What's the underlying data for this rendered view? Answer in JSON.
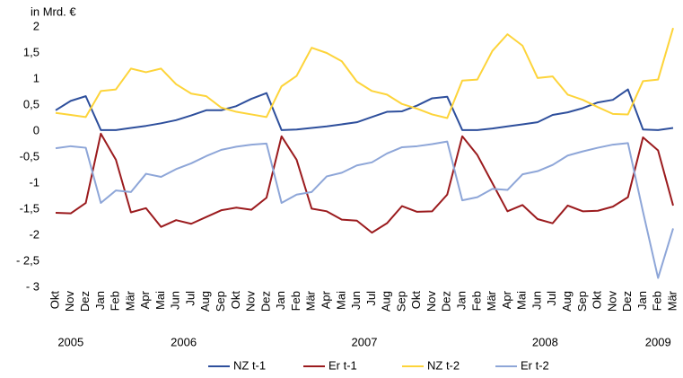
{
  "chart_data": {
    "type": "line",
    "unit_label": "in Mrd. €",
    "categories": [
      "Okt",
      "Nov",
      "Dez",
      "Jan",
      "Feb",
      "Mär",
      "Apr",
      "Mai",
      "Jun",
      "Jul",
      "Aug",
      "Sep",
      "Okt",
      "Nov",
      "Dez",
      "Jan",
      "Feb",
      "Mär",
      "Apr",
      "Mai",
      "Jun",
      "Jul",
      "Aug",
      "Sep",
      "Okt",
      "Nov",
      "Dez",
      "Jan",
      "Feb",
      "Mär",
      "Apr",
      "Mai",
      "Jun",
      "Jul",
      "Aug",
      "Sep",
      "Okt",
      "Nov",
      "Dez",
      "Jan",
      "Feb",
      "Mär"
    ],
    "years": [
      {
        "label": "2005",
        "months": 3
      },
      {
        "label": "2006",
        "months": 12
      },
      {
        "label": "2007",
        "months": 12
      },
      {
        "label": "2008",
        "months": 12
      },
      {
        "label": "2009",
        "months": 3
      }
    ],
    "ylim": [
      -3,
      2
    ],
    "yticks": [
      2,
      {
        "value": 1.5,
        "label": "1,5"
      },
      1,
      {
        "value": 0.5,
        "label": "0,5"
      },
      0,
      {
        "value": -0.5,
        "label": "-0,5"
      },
      -1,
      {
        "value": -1.5,
        "label": "-1,5"
      },
      -2,
      {
        "value": -2.5,
        "label": "- 2,5"
      },
      {
        "value": -3,
        "label": "- 3"
      }
    ],
    "grid": false,
    "legend": "bottom",
    "series": [
      {
        "name": "NZ t-1",
        "color": "#2e4f9c",
        "values": [
          0.4,
          0.58,
          0.67,
          0.02,
          0.02,
          0.06,
          0.1,
          0.15,
          0.21,
          0.3,
          0.4,
          0.4,
          0.48,
          0.62,
          0.73,
          0.02,
          0.03,
          0.06,
          0.09,
          0.13,
          0.17,
          0.27,
          0.37,
          0.38,
          0.49,
          0.63,
          0.66,
          0.02,
          0.02,
          0.05,
          0.09,
          0.13,
          0.17,
          0.31,
          0.36,
          0.44,
          0.55,
          0.6,
          0.8,
          0.03,
          0.02,
          0.06
        ]
      },
      {
        "name": "Er t-1",
        "color": "#9b1b1e",
        "values": [
          -1.57,
          -1.58,
          -1.38,
          -0.05,
          -0.55,
          -1.56,
          -1.48,
          -1.84,
          -1.71,
          -1.78,
          -1.65,
          -1.52,
          -1.47,
          -1.51,
          -1.28,
          -0.1,
          -0.55,
          -1.49,
          -1.54,
          -1.7,
          -1.72,
          -1.95,
          -1.77,
          -1.44,
          -1.55,
          -1.54,
          -1.22,
          -0.1,
          -0.46,
          -1.0,
          -1.54,
          -1.42,
          -1.69,
          -1.77,
          -1.43,
          -1.54,
          -1.53,
          -1.45,
          -1.27,
          -0.12,
          -0.37,
          -1.43
        ]
      },
      {
        "name": "NZ t-2",
        "color": "#fdd43a",
        "values": [
          0.35,
          0.31,
          0.27,
          0.77,
          0.8,
          1.2,
          1.13,
          1.2,
          0.9,
          0.72,
          0.67,
          0.45,
          0.37,
          0.32,
          0.27,
          0.86,
          1.06,
          1.6,
          1.5,
          1.34,
          0.95,
          0.77,
          0.7,
          0.52,
          0.43,
          0.32,
          0.25,
          0.97,
          0.99,
          1.54,
          1.86,
          1.64,
          1.02,
          1.05,
          0.7,
          0.6,
          0.46,
          0.33,
          0.32,
          0.96,
          0.99,
          1.98
        ]
      },
      {
        "name": "Er t-2",
        "color": "#8ea6d8",
        "values": [
          -0.33,
          -0.29,
          -0.32,
          -1.38,
          -1.14,
          -1.17,
          -0.82,
          -0.88,
          -0.73,
          -0.62,
          -0.48,
          -0.36,
          -0.3,
          -0.26,
          -0.24,
          -1.38,
          -1.22,
          -1.17,
          -0.87,
          -0.8,
          -0.66,
          -0.6,
          -0.43,
          -0.31,
          -0.29,
          -0.25,
          -0.2,
          -1.33,
          -1.27,
          -1.11,
          -1.13,
          -0.83,
          -0.77,
          -0.65,
          -0.47,
          -0.39,
          -0.32,
          -0.26,
          -0.23,
          -1.55,
          -2.82,
          -1.87
        ]
      }
    ]
  }
}
